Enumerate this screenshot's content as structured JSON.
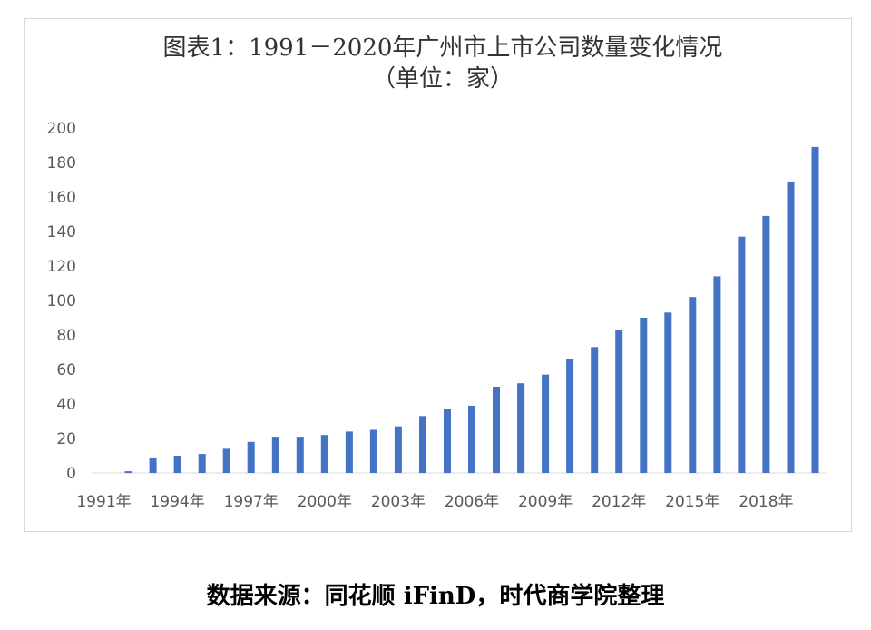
{
  "chart_data": {
    "type": "bar",
    "title": "图表1：1991－2020年广州市上市公司数量变化情况",
    "subtitle": "（单位：家）",
    "categories": [
      "1991年",
      "1992年",
      "1993年",
      "1994年",
      "1995年",
      "1996年",
      "1997年",
      "1998年",
      "1999年",
      "2000年",
      "2001年",
      "2002年",
      "2003年",
      "2004年",
      "2005年",
      "2006年",
      "2007年",
      "2008年",
      "2009年",
      "2010年",
      "2011年",
      "2012年",
      "2013年",
      "2014年",
      "2015年",
      "2016年",
      "2017年",
      "2018年",
      "2019年",
      "2020年"
    ],
    "x_tick_labels": [
      "1991年",
      "1994年",
      "1997年",
      "2000年",
      "2003年",
      "2006年",
      "2009年",
      "2012年",
      "2015年",
      "2018年"
    ],
    "values": [
      0,
      1,
      9,
      10,
      11,
      14,
      18,
      21,
      21,
      22,
      24,
      25,
      27,
      33,
      37,
      39,
      50,
      52,
      57,
      66,
      73,
      83,
      90,
      93,
      102,
      114,
      137,
      149,
      169,
      189
    ],
    "ylim": [
      0,
      200
    ],
    "y_ticks": [
      0,
      20,
      40,
      60,
      80,
      100,
      120,
      140,
      160,
      180,
      200
    ],
    "xlabel": "",
    "ylabel": "",
    "grid": false,
    "bar_color": "#4472c4"
  },
  "source_note": "数据来源：同花顺 iFinD，时代商学院整理"
}
